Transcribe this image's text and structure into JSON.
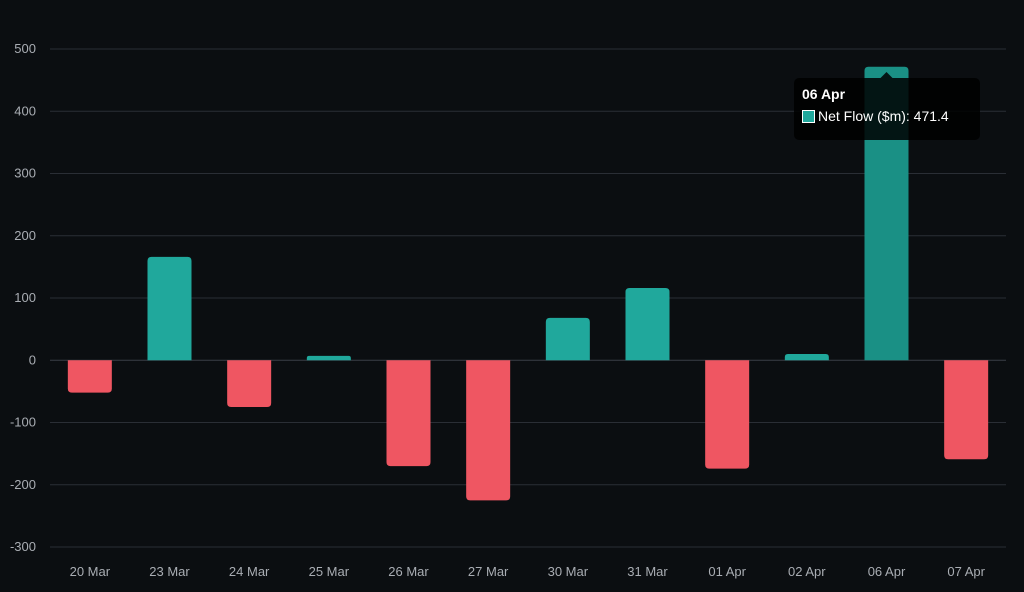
{
  "chart_data": {
    "type": "bar",
    "categories": [
      "20 Mar",
      "23 Mar",
      "24 Mar",
      "25 Mar",
      "26 Mar",
      "27 Mar",
      "30 Mar",
      "31 Mar",
      "01 Apr",
      "02 Apr",
      "06 Apr",
      "07 Apr"
    ],
    "series": [
      {
        "name": "Net Flow ($m)",
        "values": [
          -52,
          166,
          -75,
          7,
          -170,
          -225,
          68,
          116,
          -174,
          10,
          471.4,
          -159
        ]
      }
    ],
    "ylim": [
      -300,
      500
    ],
    "yticks": [
      500,
      400,
      300,
      200,
      100,
      0,
      -100,
      -200,
      -300
    ],
    "grid": true,
    "colors": {
      "positive": "#20a89c",
      "negative": "#ef5662",
      "hover": "#1a9085",
      "background": "#0b0e11"
    },
    "tooltip": {
      "title": "06 Apr",
      "label": "Net Flow ($m): 471.4",
      "index": 10
    }
  }
}
